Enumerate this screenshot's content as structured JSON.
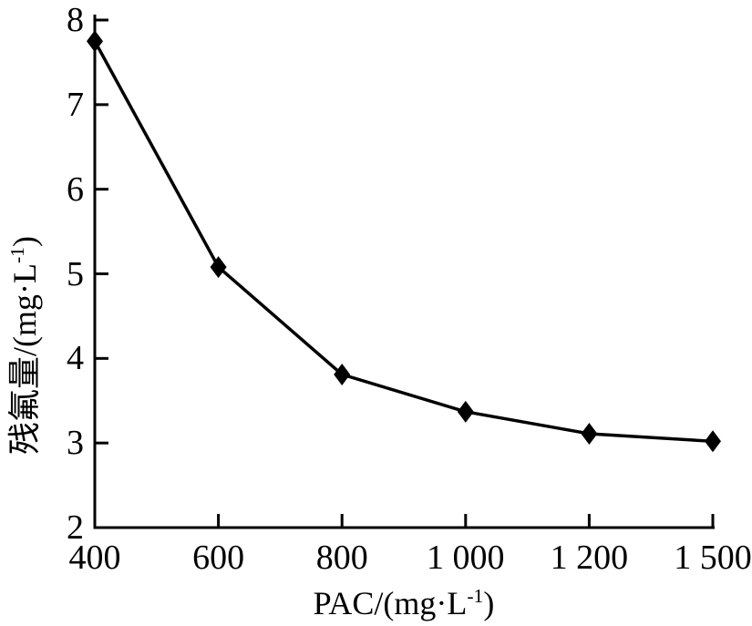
{
  "chart_data": {
    "type": "line",
    "title": "",
    "categories": [
      "400",
      "600",
      "800",
      "1 000",
      "1 200",
      "1 500"
    ],
    "x_numeric": [
      400,
      600,
      800,
      1000,
      1200,
      1500
    ],
    "x_scale": "categorical-equal-spacing",
    "series": [
      {
        "marker": "diamond",
        "color": "#000000",
        "values": [
          7.75,
          5.08,
          3.81,
          3.37,
          3.11,
          3.02
        ]
      }
    ],
    "xlabel": {
      "prefix": "PAC/(mg·L",
      "sup": "-1",
      "suffix": ")"
    },
    "ylabel": {
      "prefix": "残氟量/(mg·L",
      "sup": "-1",
      "suffix": ")"
    },
    "ylim": [
      2,
      8
    ],
    "yticks": [
      2,
      3,
      4,
      5,
      6,
      7,
      8
    ],
    "grid": false,
    "legend": "none",
    "axis_color": "#000000",
    "background": "#ffffff"
  }
}
